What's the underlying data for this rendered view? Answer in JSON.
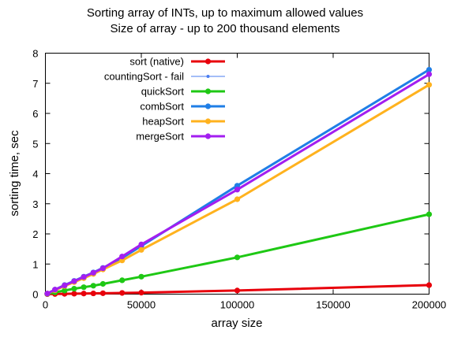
{
  "chart_data": {
    "type": "line",
    "title": [
      "Sorting array of INTs, up to maximum allowed values",
      "Size of array - up to 200 thousand elements"
    ],
    "xlabel": "array size",
    "ylabel": "sorting time, sec",
    "xlim": [
      0,
      200000
    ],
    "ylim": [
      0,
      8
    ],
    "x_ticks": [
      0,
      50000,
      100000,
      150000,
      200000
    ],
    "x_tick_labels": [
      "0",
      "50000",
      "100000",
      "150000",
      "200000"
    ],
    "y_ticks": [
      0,
      1,
      2,
      3,
      4,
      5,
      6,
      7,
      8
    ],
    "y_tick_labels": [
      "0",
      "1",
      "2",
      "3",
      "4",
      "5",
      "6",
      "7",
      "8"
    ],
    "grid": false,
    "legend_position": "top-left",
    "series": [
      {
        "name": "sort (native)",
        "color": "#e8000b",
        "x": [
          1000,
          5000,
          10000,
          15000,
          20000,
          25000,
          30000,
          40000,
          50000,
          100000,
          200000
        ],
        "y": [
          0.0,
          0.005,
          0.01,
          0.015,
          0.02,
          0.025,
          0.03,
          0.04,
          0.05,
          0.12,
          0.3
        ]
      },
      {
        "name": "countingSort - fail",
        "color": "#4a7df0",
        "x": [],
        "y": []
      },
      {
        "name": "quickSort",
        "color": "#1ec814",
        "x": [
          1000,
          5000,
          10000,
          15000,
          20000,
          25000,
          30000,
          40000,
          50000,
          100000,
          200000
        ],
        "y": [
          0.01,
          0.06,
          0.12,
          0.18,
          0.23,
          0.28,
          0.34,
          0.46,
          0.58,
          1.22,
          2.65
        ]
      },
      {
        "name": "combSort",
        "color": "#1f7ee6",
        "x": [
          1000,
          5000,
          10000,
          15000,
          20000,
          25000,
          30000,
          40000,
          50000,
          100000,
          200000
        ],
        "y": [
          0.02,
          0.15,
          0.3,
          0.44,
          0.58,
          0.72,
          0.87,
          1.2,
          1.6,
          3.6,
          7.45
        ]
      },
      {
        "name": "heapSort",
        "color": "#ffb21e",
        "x": [
          1000,
          5000,
          10000,
          15000,
          20000,
          25000,
          30000,
          40000,
          50000,
          100000,
          200000
        ],
        "y": [
          0.02,
          0.13,
          0.27,
          0.4,
          0.53,
          0.67,
          0.82,
          1.12,
          1.47,
          3.15,
          6.95
        ]
      },
      {
        "name": "mergeSort",
        "color": "#a31ef0",
        "x": [
          1000,
          5000,
          10000,
          15000,
          20000,
          25000,
          30000,
          40000,
          50000,
          100000,
          200000
        ],
        "y": [
          0.02,
          0.15,
          0.29,
          0.43,
          0.57,
          0.71,
          0.86,
          1.25,
          1.65,
          3.47,
          7.3
        ]
      }
    ]
  }
}
